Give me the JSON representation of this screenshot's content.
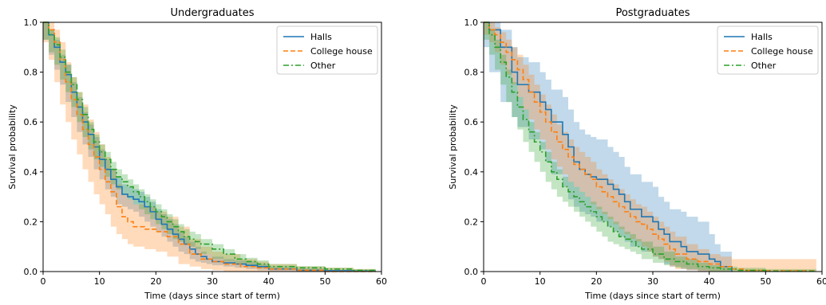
{
  "colors": {
    "halls": "#1f77b4",
    "college_house": "#ff7f0e",
    "other": "#2ca02c"
  },
  "chart_data": [
    {
      "type": "line",
      "step": true,
      "title": "Undergraduates",
      "xlabel": "Time (days since start of term)",
      "ylabel": "Survival probability",
      "xlim": [
        0,
        60
      ],
      "ylim": [
        0,
        1.0
      ],
      "xticks": [
        "0",
        "10",
        "20",
        "30",
        "40",
        "50",
        "60"
      ],
      "yticks": [
        "0.0",
        "0.2",
        "0.4",
        "0.6",
        "0.8",
        "1.0"
      ],
      "grid": false,
      "legend": "top-right",
      "series": [
        {
          "name": "Halls",
          "color": "#1f77b4",
          "linestyle": "solid",
          "x": [
            0,
            1,
            2,
            3,
            4,
            5,
            6,
            7,
            8,
            9,
            10,
            11,
            12,
            13,
            14,
            15,
            16,
            17,
            18,
            19,
            20,
            21,
            22,
            23,
            24,
            25,
            26,
            27,
            28,
            29,
            30,
            32,
            34,
            36,
            38,
            40,
            45,
            50,
            55,
            59
          ],
          "y": [
            1.0,
            0.95,
            0.9,
            0.84,
            0.79,
            0.72,
            0.66,
            0.6,
            0.55,
            0.5,
            0.45,
            0.41,
            0.37,
            0.34,
            0.31,
            0.3,
            0.29,
            0.28,
            0.26,
            0.24,
            0.21,
            0.19,
            0.17,
            0.15,
            0.13,
            0.11,
            0.09,
            0.07,
            0.06,
            0.05,
            0.04,
            0.035,
            0.03,
            0.025,
            0.02,
            0.01,
            0.005,
            0.003,
            0.002,
            0.002
          ],
          "ci_low": [
            1.0,
            0.93,
            0.87,
            0.81,
            0.75,
            0.68,
            0.62,
            0.56,
            0.51,
            0.46,
            0.41,
            0.37,
            0.33,
            0.3,
            0.27,
            0.26,
            0.25,
            0.24,
            0.22,
            0.2,
            0.18,
            0.16,
            0.14,
            0.12,
            0.1,
            0.08,
            0.07,
            0.05,
            0.04,
            0.035,
            0.03,
            0.025,
            0.02,
            0.015,
            0.01,
            0.005,
            0.002,
            0.001,
            0.0,
            0.0
          ],
          "ci_high": [
            1.0,
            0.97,
            0.93,
            0.87,
            0.83,
            0.76,
            0.7,
            0.64,
            0.59,
            0.54,
            0.49,
            0.45,
            0.41,
            0.38,
            0.35,
            0.34,
            0.33,
            0.32,
            0.3,
            0.28,
            0.25,
            0.23,
            0.21,
            0.19,
            0.16,
            0.14,
            0.12,
            0.1,
            0.08,
            0.07,
            0.06,
            0.05,
            0.045,
            0.04,
            0.03,
            0.02,
            0.012,
            0.008,
            0.006,
            0.006
          ]
        },
        {
          "name": "College house",
          "color": "#ff7f0e",
          "linestyle": "dashed",
          "x": [
            0,
            1,
            2,
            3,
            4,
            5,
            6,
            7,
            8,
            9,
            10,
            11,
            12,
            13,
            14,
            15,
            16,
            18,
            20,
            22,
            24,
            26,
            28,
            30,
            32,
            35,
            38,
            40,
            45,
            50,
            55,
            59
          ],
          "y": [
            1.0,
            0.97,
            0.92,
            0.85,
            0.76,
            0.69,
            0.63,
            0.57,
            0.51,
            0.46,
            0.41,
            0.36,
            0.32,
            0.26,
            0.22,
            0.2,
            0.18,
            0.17,
            0.16,
            0.14,
            0.11,
            0.07,
            0.05,
            0.04,
            0.03,
            0.02,
            0.015,
            0.01,
            0.005,
            0.0,
            0.0,
            0.0
          ],
          "ci_low": [
            1.0,
            0.92,
            0.85,
            0.76,
            0.67,
            0.6,
            0.53,
            0.47,
            0.41,
            0.36,
            0.31,
            0.27,
            0.23,
            0.18,
            0.15,
            0.13,
            0.11,
            0.1,
            0.09,
            0.08,
            0.06,
            0.03,
            0.02,
            0.01,
            0.005,
            0.0,
            0.0,
            0.0,
            0.0,
            0.0,
            0.0,
            0.0
          ],
          "ci_high": [
            1.0,
            1.0,
            0.97,
            0.92,
            0.84,
            0.78,
            0.72,
            0.67,
            0.61,
            0.56,
            0.51,
            0.46,
            0.41,
            0.35,
            0.31,
            0.29,
            0.27,
            0.26,
            0.24,
            0.22,
            0.18,
            0.13,
            0.1,
            0.08,
            0.07,
            0.05,
            0.04,
            0.03,
            0.02,
            0.015,
            0.01,
            0.01
          ]
        },
        {
          "name": "Other",
          "color": "#2ca02c",
          "linestyle": "dashdot",
          "x": [
            0,
            1,
            2,
            3,
            4,
            5,
            6,
            7,
            8,
            9,
            10,
            11,
            12,
            13,
            14,
            15,
            16,
            17,
            18,
            19,
            20,
            21,
            22,
            23,
            24,
            25,
            26,
            27,
            28,
            30,
            32,
            34,
            36,
            38,
            40,
            45,
            50,
            55,
            59
          ],
          "y": [
            1.0,
            0.95,
            0.91,
            0.86,
            0.8,
            0.75,
            0.69,
            0.63,
            0.57,
            0.52,
            0.48,
            0.45,
            0.41,
            0.38,
            0.36,
            0.34,
            0.32,
            0.3,
            0.28,
            0.26,
            0.24,
            0.22,
            0.2,
            0.18,
            0.16,
            0.14,
            0.13,
            0.12,
            0.11,
            0.09,
            0.07,
            0.05,
            0.04,
            0.03,
            0.02,
            0.015,
            0.01,
            0.005,
            0.004
          ],
          "ci_low": [
            1.0,
            0.93,
            0.88,
            0.83,
            0.77,
            0.72,
            0.66,
            0.6,
            0.54,
            0.49,
            0.45,
            0.42,
            0.38,
            0.35,
            0.33,
            0.31,
            0.29,
            0.27,
            0.25,
            0.23,
            0.21,
            0.19,
            0.17,
            0.15,
            0.13,
            0.12,
            0.11,
            0.1,
            0.09,
            0.07,
            0.05,
            0.04,
            0.03,
            0.02,
            0.013,
            0.009,
            0.005,
            0.002,
            0.001
          ],
          "ci_high": [
            1.0,
            0.97,
            0.94,
            0.89,
            0.83,
            0.78,
            0.72,
            0.66,
            0.6,
            0.55,
            0.51,
            0.48,
            0.44,
            0.41,
            0.39,
            0.37,
            0.35,
            0.33,
            0.31,
            0.29,
            0.27,
            0.25,
            0.23,
            0.21,
            0.19,
            0.17,
            0.16,
            0.15,
            0.13,
            0.11,
            0.09,
            0.07,
            0.055,
            0.045,
            0.03,
            0.022,
            0.016,
            0.01,
            0.009
          ]
        }
      ]
    },
    {
      "type": "line",
      "step": true,
      "title": "Postgraduates",
      "xlabel": "Time (days since start of term)",
      "ylabel": "Survival probability",
      "xlim": [
        0,
        60
      ],
      "ylim": [
        0,
        1.0
      ],
      "xticks": [
        "0",
        "10",
        "20",
        "30",
        "40",
        "50",
        "60"
      ],
      "yticks": [
        "0.0",
        "0.2",
        "0.4",
        "0.6",
        "0.8",
        "1.0"
      ],
      "grid": false,
      "legend": "top-right",
      "series": [
        {
          "name": "Halls",
          "color": "#1f77b4",
          "linestyle": "solid",
          "x": [
            0,
            1,
            3,
            5,
            6,
            8,
            10,
            11,
            12,
            14,
            15,
            16,
            17,
            18,
            19,
            20,
            22,
            23,
            24,
            25,
            26,
            28,
            30,
            31,
            32,
            33,
            35,
            36,
            38,
            40,
            41,
            42,
            44
          ],
          "y": [
            1.0,
            0.97,
            0.9,
            0.8,
            0.75,
            0.72,
            0.68,
            0.65,
            0.6,
            0.55,
            0.5,
            0.44,
            0.41,
            0.39,
            0.38,
            0.37,
            0.35,
            0.33,
            0.31,
            0.28,
            0.25,
            0.22,
            0.2,
            0.17,
            0.15,
            0.12,
            0.1,
            0.08,
            0.07,
            0.05,
            0.04,
            0.02,
            0.0
          ],
          "ci_low": [
            1.0,
            0.9,
            0.8,
            0.68,
            0.62,
            0.58,
            0.53,
            0.49,
            0.44,
            0.39,
            0.34,
            0.29,
            0.26,
            0.24,
            0.23,
            0.22,
            0.2,
            0.18,
            0.16,
            0.14,
            0.12,
            0.1,
            0.08,
            0.06,
            0.05,
            0.03,
            0.02,
            0.01,
            0.005,
            0.0,
            0.0,
            0.0,
            0.0
          ],
          "ci_high": [
            1.0,
            1.0,
            0.97,
            0.9,
            0.86,
            0.84,
            0.8,
            0.77,
            0.73,
            0.7,
            0.65,
            0.6,
            0.57,
            0.55,
            0.54,
            0.53,
            0.5,
            0.48,
            0.46,
            0.42,
            0.39,
            0.36,
            0.34,
            0.3,
            0.28,
            0.25,
            0.24,
            0.22,
            0.2,
            0.15,
            0.11,
            0.08,
            0.0
          ]
        },
        {
          "name": "College house",
          "color": "#ff7f0e",
          "linestyle": "dashed",
          "x": [
            0,
            1,
            2,
            3,
            4,
            5,
            6,
            7,
            8,
            9,
            10,
            11,
            12,
            13,
            14,
            15,
            16,
            17,
            18,
            19,
            20,
            21,
            22,
            23,
            24,
            25,
            26,
            27,
            28,
            29,
            30,
            31,
            32,
            33,
            34,
            36,
            38,
            40,
            42,
            44,
            46,
            50,
            59
          ],
          "y": [
            1.0,
            0.97,
            0.95,
            0.92,
            0.88,
            0.85,
            0.81,
            0.77,
            0.72,
            0.68,
            0.64,
            0.6,
            0.56,
            0.52,
            0.49,
            0.46,
            0.43,
            0.41,
            0.39,
            0.37,
            0.34,
            0.32,
            0.3,
            0.28,
            0.26,
            0.24,
            0.22,
            0.2,
            0.19,
            0.17,
            0.15,
            0.13,
            0.11,
            0.09,
            0.07,
            0.05,
            0.04,
            0.03,
            0.02,
            0.01,
            0.005,
            0.003,
            0.003
          ],
          "ci_low": [
            1.0,
            0.95,
            0.92,
            0.88,
            0.83,
            0.79,
            0.75,
            0.7,
            0.65,
            0.61,
            0.57,
            0.53,
            0.49,
            0.45,
            0.42,
            0.39,
            0.36,
            0.34,
            0.32,
            0.3,
            0.27,
            0.25,
            0.23,
            0.21,
            0.19,
            0.17,
            0.15,
            0.13,
            0.12,
            0.1,
            0.08,
            0.06,
            0.05,
            0.04,
            0.02,
            0.01,
            0.005,
            0.0,
            0.0,
            0.0,
            0.0,
            0.0,
            0.0
          ],
          "ci_high": [
            1.0,
            1.0,
            0.98,
            0.96,
            0.93,
            0.9,
            0.87,
            0.83,
            0.79,
            0.75,
            0.71,
            0.67,
            0.63,
            0.59,
            0.56,
            0.53,
            0.5,
            0.48,
            0.46,
            0.44,
            0.41,
            0.39,
            0.37,
            0.35,
            0.33,
            0.31,
            0.29,
            0.27,
            0.26,
            0.24,
            0.22,
            0.2,
            0.18,
            0.16,
            0.14,
            0.11,
            0.09,
            0.07,
            0.06,
            0.05,
            0.05,
            0.05,
            0.05
          ]
        },
        {
          "name": "Other",
          "color": "#2ca02c",
          "linestyle": "dashdot",
          "x": [
            0,
            1,
            2,
            3,
            4,
            5,
            6,
            7,
            8,
            9,
            10,
            11,
            12,
            13,
            14,
            15,
            16,
            17,
            18,
            19,
            20,
            21,
            22,
            23,
            24,
            25,
            26,
            27,
            28,
            30,
            32,
            34,
            36,
            38,
            40,
            42,
            45,
            50,
            59
          ],
          "y": [
            1.0,
            0.95,
            0.9,
            0.84,
            0.78,
            0.72,
            0.66,
            0.61,
            0.56,
            0.52,
            0.48,
            0.44,
            0.4,
            0.37,
            0.34,
            0.32,
            0.3,
            0.28,
            0.26,
            0.24,
            0.22,
            0.2,
            0.18,
            0.16,
            0.14,
            0.13,
            0.12,
            0.1,
            0.09,
            0.07,
            0.05,
            0.04,
            0.03,
            0.02,
            0.015,
            0.01,
            0.005,
            0.002,
            0.002
          ],
          "ci_low": [
            1.0,
            0.93,
            0.87,
            0.81,
            0.75,
            0.68,
            0.62,
            0.57,
            0.52,
            0.48,
            0.44,
            0.4,
            0.36,
            0.33,
            0.3,
            0.28,
            0.26,
            0.24,
            0.22,
            0.2,
            0.18,
            0.16,
            0.14,
            0.12,
            0.11,
            0.1,
            0.09,
            0.08,
            0.07,
            0.05,
            0.035,
            0.025,
            0.015,
            0.01,
            0.005,
            0.0,
            0.0,
            0.0,
            0.0
          ],
          "ci_high": [
            1.0,
            0.97,
            0.93,
            0.87,
            0.81,
            0.76,
            0.7,
            0.65,
            0.6,
            0.56,
            0.52,
            0.48,
            0.44,
            0.41,
            0.38,
            0.36,
            0.34,
            0.32,
            0.3,
            0.28,
            0.26,
            0.24,
            0.22,
            0.2,
            0.18,
            0.16,
            0.15,
            0.13,
            0.12,
            0.1,
            0.08,
            0.06,
            0.05,
            0.035,
            0.025,
            0.02,
            0.015,
            0.01,
            0.01
          ]
        }
      ]
    }
  ]
}
